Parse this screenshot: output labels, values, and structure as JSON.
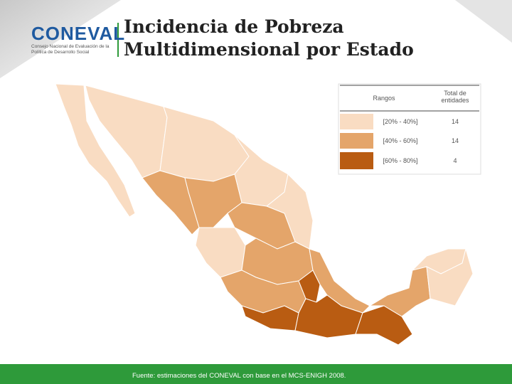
{
  "header": {
    "logo": "CONEVAL",
    "logo_subtitle": "Consejo Nacional de Evaluación de la Política de Desarrollo Social",
    "title": "Incidencia de Pobreza Multidimensional por Estado"
  },
  "legend": {
    "headers": [
      "Rangos",
      "Total de entidades"
    ],
    "rows": [
      {
        "range": "[20% - 40%]",
        "count": "14",
        "color": "#f9dcc2"
      },
      {
        "range": "[40% - 60%]",
        "count": "14",
        "color": "#e4a56a"
      },
      {
        "range": "[60% - 80%]",
        "count": "4",
        "color": "#b95c12"
      }
    ]
  },
  "footer": "Fuente: estimaciones del CONEVAL con base en el MCS-ENIGH 2008."
}
